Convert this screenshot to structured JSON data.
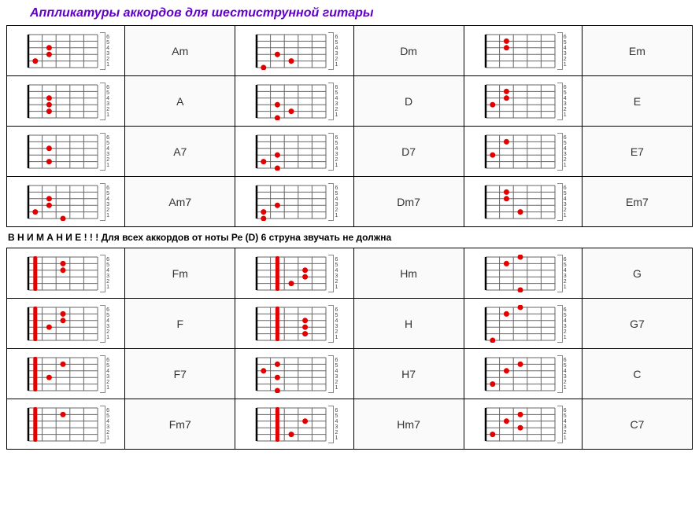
{
  "title": "Аппликатуры аккордов для шестиструнной гитары",
  "note": "В Н И М А Н И Е ! ! !  Для всех аккордов от ноты Ре (D) 6 струна звучать не должна",
  "frets": 5,
  "strings": 6,
  "string_labels": [
    "6",
    "5",
    "4",
    "3",
    "2",
    "1"
  ],
  "diagram": {
    "width": 100,
    "height": 48,
    "grid_color": "#666666",
    "nut_color": "#000000",
    "dot_color": "#e20000",
    "dot_radius": 3.5,
    "barre_width": 5
  },
  "rows1": [
    [
      {
        "name": "Am",
        "dots": [
          {
            "f": 1,
            "s": 2
          },
          {
            "f": 2,
            "s": 4
          },
          {
            "f": 2,
            "s": 3
          }
        ]
      },
      {
        "name": "Dm",
        "dots": [
          {
            "f": 1,
            "s": 1
          },
          {
            "f": 2,
            "s": 3
          },
          {
            "f": 3,
            "s": 2
          }
        ]
      },
      {
        "name": "Em",
        "dots": [
          {
            "f": 2,
            "s": 5
          },
          {
            "f": 2,
            "s": 4
          }
        ]
      }
    ],
    [
      {
        "name": "A",
        "dots": [
          {
            "f": 2,
            "s": 4
          },
          {
            "f": 2,
            "s": 3
          },
          {
            "f": 2,
            "s": 2
          }
        ]
      },
      {
        "name": "D",
        "dots": [
          {
            "f": 2,
            "s": 3
          },
          {
            "f": 2,
            "s": 1
          },
          {
            "f": 3,
            "s": 2
          }
        ]
      },
      {
        "name": "E",
        "dots": [
          {
            "f": 1,
            "s": 3
          },
          {
            "f": 2,
            "s": 5
          },
          {
            "f": 2,
            "s": 4
          }
        ]
      }
    ],
    [
      {
        "name": "A7",
        "dots": [
          {
            "f": 2,
            "s": 4
          },
          {
            "f": 2,
            "s": 2
          }
        ]
      },
      {
        "name": "D7",
        "dots": [
          {
            "f": 1,
            "s": 2
          },
          {
            "f": 2,
            "s": 3
          },
          {
            "f": 2,
            "s": 1
          }
        ]
      },
      {
        "name": "E7",
        "dots": [
          {
            "f": 1,
            "s": 3
          },
          {
            "f": 2,
            "s": 5
          }
        ]
      }
    ],
    [
      {
        "name": "Am7",
        "dots": [
          {
            "f": 1,
            "s": 2
          },
          {
            "f": 2,
            "s": 4
          },
          {
            "f": 2,
            "s": 3
          },
          {
            "f": 3,
            "s": 1
          }
        ]
      },
      {
        "name": "Dm7",
        "dots": [
          {
            "f": 1,
            "s": 1
          },
          {
            "f": 1,
            "s": 2
          },
          {
            "f": 2,
            "s": 3
          }
        ]
      },
      {
        "name": "Em7",
        "dots": [
          {
            "f": 2,
            "s": 5
          },
          {
            "f": 2,
            "s": 4
          },
          {
            "f": 3,
            "s": 2
          }
        ]
      }
    ]
  ],
  "rows2": [
    [
      {
        "name": "Fm",
        "barre": {
          "f": 1
        },
        "dots": [
          {
            "f": 3,
            "s": 5
          },
          {
            "f": 3,
            "s": 4
          }
        ]
      },
      {
        "name": "Hm",
        "barre": {
          "f": 2
        },
        "dots": [
          {
            "f": 3,
            "s": 2
          },
          {
            "f": 4,
            "s": 4
          },
          {
            "f": 4,
            "s": 3
          }
        ]
      },
      {
        "name": "G",
        "dots": [
          {
            "f": 2,
            "s": 5
          },
          {
            "f": 3,
            "s": 6
          },
          {
            "f": 3,
            "s": 1
          }
        ]
      }
    ],
    [
      {
        "name": "F",
        "barre": {
          "f": 1
        },
        "dots": [
          {
            "f": 2,
            "s": 3
          },
          {
            "f": 3,
            "s": 5
          },
          {
            "f": 3,
            "s": 4
          }
        ]
      },
      {
        "name": "H",
        "barre": {
          "f": 2
        },
        "dots": [
          {
            "f": 4,
            "s": 4
          },
          {
            "f": 4,
            "s": 3
          },
          {
            "f": 4,
            "s": 2
          }
        ]
      },
      {
        "name": "G7",
        "dots": [
          {
            "f": 1,
            "s": 1
          },
          {
            "f": 2,
            "s": 5
          },
          {
            "f": 3,
            "s": 6
          }
        ]
      }
    ],
    [
      {
        "name": "F7",
        "barre": {
          "f": 1
        },
        "dots": [
          {
            "f": 2,
            "s": 3
          },
          {
            "f": 3,
            "s": 5
          }
        ]
      },
      {
        "name": "H7",
        "dots": [
          {
            "f": 1,
            "s": 4
          },
          {
            "f": 2,
            "s": 5
          },
          {
            "f": 2,
            "s": 3
          },
          {
            "f": 2,
            "s": 1
          }
        ]
      },
      {
        "name": "C",
        "dots": [
          {
            "f": 1,
            "s": 2
          },
          {
            "f": 2,
            "s": 4
          },
          {
            "f": 3,
            "s": 5
          }
        ]
      }
    ],
    [
      {
        "name": "Fm7",
        "barre": {
          "f": 1
        },
        "dots": [
          {
            "f": 3,
            "s": 5
          }
        ]
      },
      {
        "name": "Hm7",
        "barre": {
          "f": 2
        },
        "dots": [
          {
            "f": 3,
            "s": 2
          },
          {
            "f": 4,
            "s": 4
          }
        ]
      },
      {
        "name": "C7",
        "dots": [
          {
            "f": 1,
            "s": 2
          },
          {
            "f": 2,
            "s": 4
          },
          {
            "f": 3,
            "s": 5
          },
          {
            "f": 3,
            "s": 3
          }
        ]
      }
    ]
  ]
}
